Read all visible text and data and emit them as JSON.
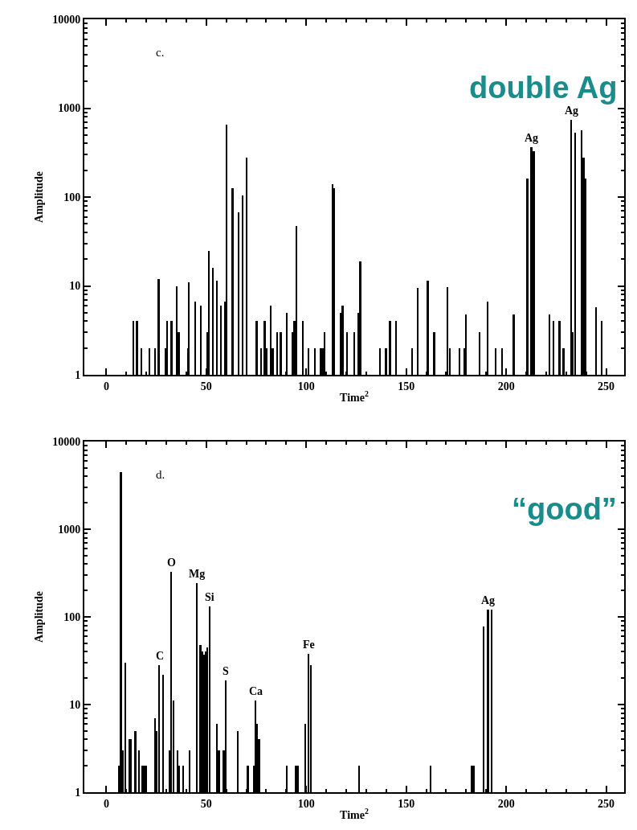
{
  "chart_data": [
    {
      "type": "bar",
      "color": "#000000",
      "log": true,
      "xlabel": "Time$^{2}$",
      "ylabel": "Amplitude",
      "xlim": [
        -11,
        259
      ],
      "ylim": [
        1,
        10000
      ],
      "xticks": [
        0,
        {
          "value": 10,
          "label": null
        },
        {
          "value": 20,
          "label": null
        },
        {
          "value": 30,
          "label": null
        },
        {
          "value": 40,
          "label": null
        },
        50,
        {
          "value": 60,
          "label": null
        },
        {
          "value": 70,
          "label": null
        },
        {
          "value": 80,
          "label": null
        },
        {
          "value": 90,
          "label": null
        },
        100,
        {
          "value": 110,
          "label": null
        },
        {
          "value": 120,
          "label": null
        },
        {
          "value": 130,
          "label": null
        },
        {
          "value": 140,
          "label": null
        },
        150,
        {
          "value": 160,
          "label": null
        },
        {
          "value": 170,
          "label": null
        },
        {
          "value": 180,
          "label": null
        },
        {
          "value": 190,
          "label": null
        },
        200,
        {
          "value": 210,
          "label": null
        },
        {
          "value": 220,
          "label": null
        },
        {
          "value": 230,
          "label": null
        },
        {
          "value": 240,
          "label": null
        },
        250
      ],
      "yticks": [
        1,
        {
          "value": 2,
          "label": null
        },
        {
          "value": 3,
          "label": null
        },
        {
          "value": 4,
          "label": null
        },
        {
          "value": 5,
          "label": null
        },
        {
          "value": 6,
          "label": null
        },
        {
          "value": 7,
          "label": null
        },
        {
          "value": 8,
          "label": null
        },
        {
          "value": 9,
          "label": null
        },
        10,
        {
          "value": 20,
          "label": null
        },
        {
          "value": 30,
          "label": null
        },
        {
          "value": 40,
          "label": null
        },
        {
          "value": 50,
          "label": null
        },
        {
          "value": 60,
          "label": null
        },
        {
          "value": 70,
          "label": null
        },
        {
          "value": 80,
          "label": null
        },
        {
          "value": 90,
          "label": null
        },
        100,
        {
          "value": 200,
          "label": null
        },
        {
          "value": 300,
          "label": null
        },
        {
          "value": 400,
          "label": null
        },
        {
          "value": 500,
          "label": null
        },
        {
          "value": 600,
          "label": null
        },
        {
          "value": 700,
          "label": null
        },
        {
          "value": 800,
          "label": null
        },
        {
          "value": 900,
          "label": null
        },
        1000,
        {
          "value": 2000,
          "label": null
        },
        {
          "value": 3000,
          "label": null
        },
        {
          "value": 4000,
          "label": null
        },
        {
          "value": 5000,
          "label": null
        },
        {
          "value": 6000,
          "label": null
        },
        {
          "value": 7000,
          "label": null
        },
        {
          "value": 8000,
          "label": null
        },
        {
          "value": 9000,
          "label": null
        },
        10000
      ],
      "x": [
        13.5,
        15.4,
        17.6,
        21.7,
        24.5,
        26.3,
        29.8,
        30.6,
        32.7,
        35.4,
        36.3,
        40.8,
        41.4,
        44.4,
        47.4,
        50.6,
        51.4,
        53.3,
        55.3,
        57.5,
        59.3,
        60.1,
        63.2,
        66.3,
        68.2,
        70.3,
        75.3,
        77.4,
        79.3,
        80.2,
        82.2,
        83.3,
        85.4,
        87.3,
        90.2,
        93.3,
        94.2,
        95.3,
        98.3,
        101.3,
        104.4,
        107.3,
        108.2,
        109.2,
        113.1,
        114,
        117.4,
        118.3,
        120.4,
        124,
        126,
        127.1,
        137,
        140,
        142,
        145,
        152.9,
        155.8,
        160.9,
        164.1,
        170.8,
        171.9,
        176.8,
        179,
        180,
        186.9,
        190.9,
        194.9,
        198,
        203.9,
        210.7,
        212.7,
        213.9,
        221.7,
        223.7,
        226.8,
        228.8,
        232.7,
        233.5,
        234.7,
        237.8,
        238.8,
        239.8,
        244.9,
        247.8
      ],
      "values": [
        4,
        4,
        2,
        2,
        2,
        12,
        2,
        4,
        4,
        10,
        3,
        2,
        11,
        6.7,
        6,
        3,
        25,
        16,
        11.5,
        6,
        6.7,
        650,
        125,
        68,
        105,
        280,
        4,
        2,
        4,
        2,
        6,
        2,
        3,
        3,
        5,
        3,
        4,
        47,
        4,
        2,
        2,
        2,
        2,
        3,
        140,
        125,
        5,
        6,
        3,
        3,
        5,
        19,
        2,
        2,
        4,
        4,
        2,
        9.5,
        11.5,
        3,
        9.6,
        2,
        2,
        2,
        4.8,
        3,
        6.7,
        2,
        2,
        4.8,
        163,
        364,
        327,
        4.8,
        4,
        4,
        2,
        740,
        3,
        526,
        565,
        280,
        163,
        5.8,
        4
      ],
      "annotations": [
        "c.",
        "double Ag",
        {
          "text": "Ag",
          "x": 212.7,
          "y": 364
        },
        {
          "text": "Ag",
          "x": 232.7,
          "y": 740
        }
      ]
    },
    {
      "type": "bar",
      "color": "#000000",
      "log": true,
      "xlabel": "Time$^{2}$",
      "ylabel": "Amplitude",
      "xlim": [
        -11,
        259
      ],
      "ylim": [
        1,
        10000
      ],
      "xticks": [
        0,
        {
          "value": 10,
          "label": null
        },
        {
          "value": 20,
          "label": null
        },
        {
          "value": 30,
          "label": null
        },
        {
          "value": 40,
          "label": null
        },
        50,
        {
          "value": 60,
          "label": null
        },
        {
          "value": 70,
          "label": null
        },
        {
          "value": 80,
          "label": null
        },
        {
          "value": 90,
          "label": null
        },
        100,
        {
          "value": 110,
          "label": null
        },
        {
          "value": 120,
          "label": null
        },
        {
          "value": 130,
          "label": null
        },
        {
          "value": 140,
          "label": null
        },
        150,
        {
          "value": 160,
          "label": null
        },
        {
          "value": 170,
          "label": null
        },
        {
          "value": 180,
          "label": null
        },
        {
          "value": 190,
          "label": null
        },
        200,
        {
          "value": 210,
          "label": null
        },
        {
          "value": 220,
          "label": null
        },
        {
          "value": 230,
          "label": null
        },
        {
          "value": 240,
          "label": null
        },
        250
      ],
      "yticks": [
        1,
        {
          "value": 2,
          "label": null
        },
        {
          "value": 3,
          "label": null
        },
        {
          "value": 4,
          "label": null
        },
        {
          "value": 5,
          "label": null
        },
        {
          "value": 6,
          "label": null
        },
        {
          "value": 7,
          "label": null
        },
        {
          "value": 8,
          "label": null
        },
        {
          "value": 9,
          "label": null
        },
        10,
        {
          "value": 20,
          "label": null
        },
        {
          "value": 30,
          "label": null
        },
        {
          "value": 40,
          "label": null
        },
        {
          "value": 50,
          "label": null
        },
        {
          "value": 60,
          "label": null
        },
        {
          "value": 70,
          "label": null
        },
        {
          "value": 80,
          "label": null
        },
        {
          "value": 90,
          "label": null
        },
        100,
        {
          "value": 200,
          "label": null
        },
        {
          "value": 300,
          "label": null
        },
        {
          "value": 400,
          "label": null
        },
        {
          "value": 500,
          "label": null
        },
        {
          "value": 600,
          "label": null
        },
        {
          "value": 700,
          "label": null
        },
        {
          "value": 800,
          "label": null
        },
        {
          "value": 900,
          "label": null
        },
        1000,
        {
          "value": 2000,
          "label": null
        },
        {
          "value": 3000,
          "label": null
        },
        {
          "value": 4000,
          "label": null
        },
        {
          "value": 5000,
          "label": null
        },
        {
          "value": 6000,
          "label": null
        },
        {
          "value": 7000,
          "label": null
        },
        {
          "value": 8000,
          "label": null
        },
        {
          "value": 9000,
          "label": null
        },
        10000
      ],
      "x": [
        6.5,
        7.4,
        8.2,
        9.5,
        11.6,
        12.5,
        14.6,
        16.5,
        18,
        19,
        20,
        24.5,
        25.3,
        26.6,
        28.6,
        31.6,
        32.5,
        33.6,
        35.7,
        36.5,
        38.6,
        41.8,
        45.4,
        47.2,
        48,
        49,
        49.9,
        50.7,
        51.7,
        55.4,
        56.4,
        58.8,
        59.7,
        65.7,
        70.9,
        73.8,
        74.6,
        75.4,
        76.5,
        90.5,
        94.9,
        95.8,
        99.5,
        101.3,
        102.4,
        126.6,
        162.2,
        183,
        184,
        188.9,
        191,
        192.9
      ],
      "values": [
        2,
        4500,
        3,
        30,
        4,
        4,
        5,
        3,
        2,
        2,
        2,
        7,
        5,
        28,
        22,
        3,
        325,
        11,
        3,
        2,
        2,
        3,
        244,
        48,
        40,
        37,
        40,
        45,
        131,
        6,
        3,
        3,
        19,
        5,
        2,
        2,
        11,
        6,
        4,
        2,
        2,
        2,
        6,
        38,
        28,
        2,
        2,
        2,
        2,
        78,
        120,
        120
      ],
      "annotations": [
        "d.",
        "“good”",
        {
          "text": "C",
          "x": 26.6,
          "y": 28
        },
        {
          "text": "O",
          "x": 32.5,
          "y": 325
        },
        {
          "text": "Mg",
          "x": 45.4,
          "y": 244
        },
        {
          "text": "Si",
          "x": 51.7,
          "y": 131
        },
        {
          "text": "S",
          "x": 59.7,
          "y": 19
        },
        {
          "text": "Ca",
          "x": 74.6,
          "y": 11
        },
        {
          "text": "Fe",
          "x": 101.3,
          "y": 38
        },
        {
          "text": "Ag",
          "x": 191,
          "y": 120
        }
      ]
    }
  ]
}
